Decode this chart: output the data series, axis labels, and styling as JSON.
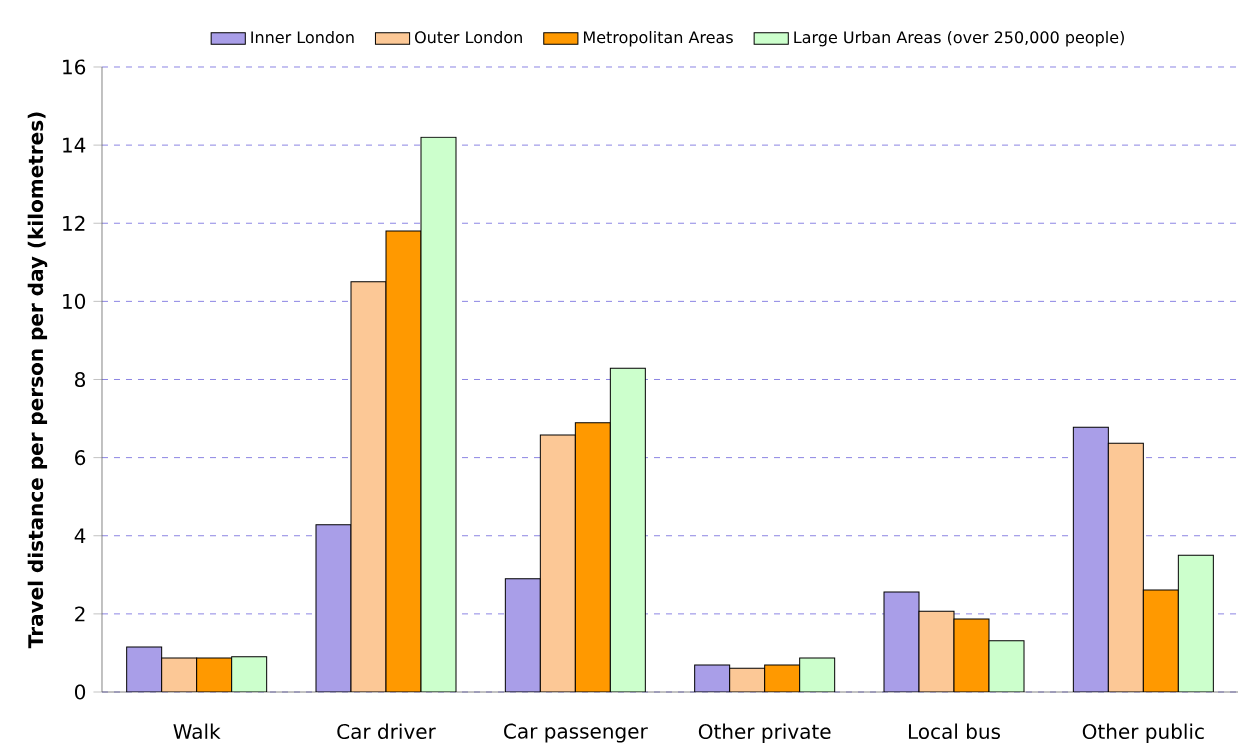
{
  "chart_data": {
    "type": "bar",
    "ylabel": "Travel distance per person per day (kilometres)",
    "categories": [
      "Walk",
      "Car driver",
      "Car passenger",
      "Other private",
      "Local bus",
      "Other public"
    ],
    "series": [
      {
        "name": "Inner London",
        "color": "#a99ee8",
        "values": [
          1.15,
          4.28,
          2.9,
          0.69,
          2.56,
          6.78
        ]
      },
      {
        "name": "Outer London",
        "color": "#fcc896",
        "values": [
          0.87,
          10.5,
          6.58,
          0.61,
          2.07,
          6.37
        ]
      },
      {
        "name": "Metropolitan Areas",
        "color": "#ff9900",
        "values": [
          0.87,
          11.8,
          6.89,
          0.69,
          1.87,
          2.61
        ]
      },
      {
        "name": "Large Urban Areas (over 250,000 people)",
        "color": "#ccffcc",
        "values": [
          0.9,
          14.2,
          8.29,
          0.87,
          1.31,
          3.5
        ]
      }
    ],
    "ylim": [
      0,
      16
    ],
    "yticks": [
      0,
      2,
      4,
      6,
      8,
      10,
      12,
      14,
      16
    ],
    "grid": "y",
    "legend": "top"
  }
}
